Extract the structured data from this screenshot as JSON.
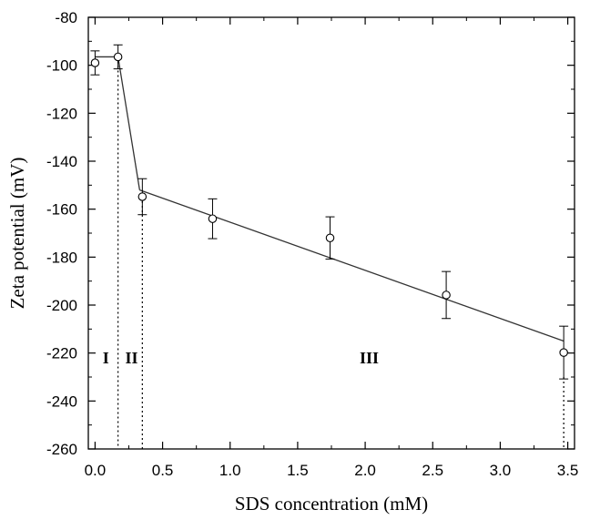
{
  "chart_data": {
    "type": "scatter",
    "xlabel": "SDS concentration (mM)",
    "ylabel": "Zeta potential (mV)",
    "xlim": [
      -0.05,
      3.55
    ],
    "ylim": [
      -260,
      -80
    ],
    "x_ticks": [
      0.0,
      0.5,
      1.0,
      1.5,
      2.0,
      2.5,
      3.0,
      3.5
    ],
    "x_tick_labels": [
      "0.0",
      "0.5",
      "1.0",
      "1.5",
      "2.0",
      "2.5",
      "3.0",
      "3.5"
    ],
    "y_ticks": [
      -80,
      -100,
      -120,
      -140,
      -160,
      -180,
      -200,
      -220,
      -240,
      -260
    ],
    "y_tick_labels": [
      "-80",
      "-100",
      "-120",
      "-140",
      "-160",
      "-180",
      "-200",
      "-220",
      "-240",
      "-260"
    ],
    "grid": false,
    "series": [
      {
        "x": [
          0.0,
          0.17,
          0.35,
          0.87,
          1.74,
          2.6,
          3.47
        ],
        "y": [
          -99,
          -96.5,
          -154.8,
          -164,
          -172,
          -195.8,
          -219.8
        ],
        "error": [
          5,
          5,
          7.5,
          8.3,
          8.8,
          9.8,
          11
        ]
      }
    ],
    "fit_lines": [
      {
        "x": [
          0.0,
          0.17
        ],
        "y": [
          -96.5,
          -96.5
        ]
      },
      {
        "x": [
          0.17,
          0.33
        ],
        "y": [
          -96.5,
          -152
        ]
      },
      {
        "x": [
          0.33,
          3.47
        ],
        "y": [
          -152,
          -215
        ]
      }
    ],
    "dividers": [
      {
        "x": 0.17,
        "y_top": -96.5
      },
      {
        "x": 0.35,
        "y_top": -154.8
      },
      {
        "x": 3.47,
        "y_top": -230
      }
    ],
    "regions": [
      {
        "label": "I",
        "x": 0.08,
        "y": -222
      },
      {
        "label": "II",
        "x": 0.27,
        "y": -222
      },
      {
        "label": "III",
        "x": 2.03,
        "y": -222
      }
    ]
  }
}
